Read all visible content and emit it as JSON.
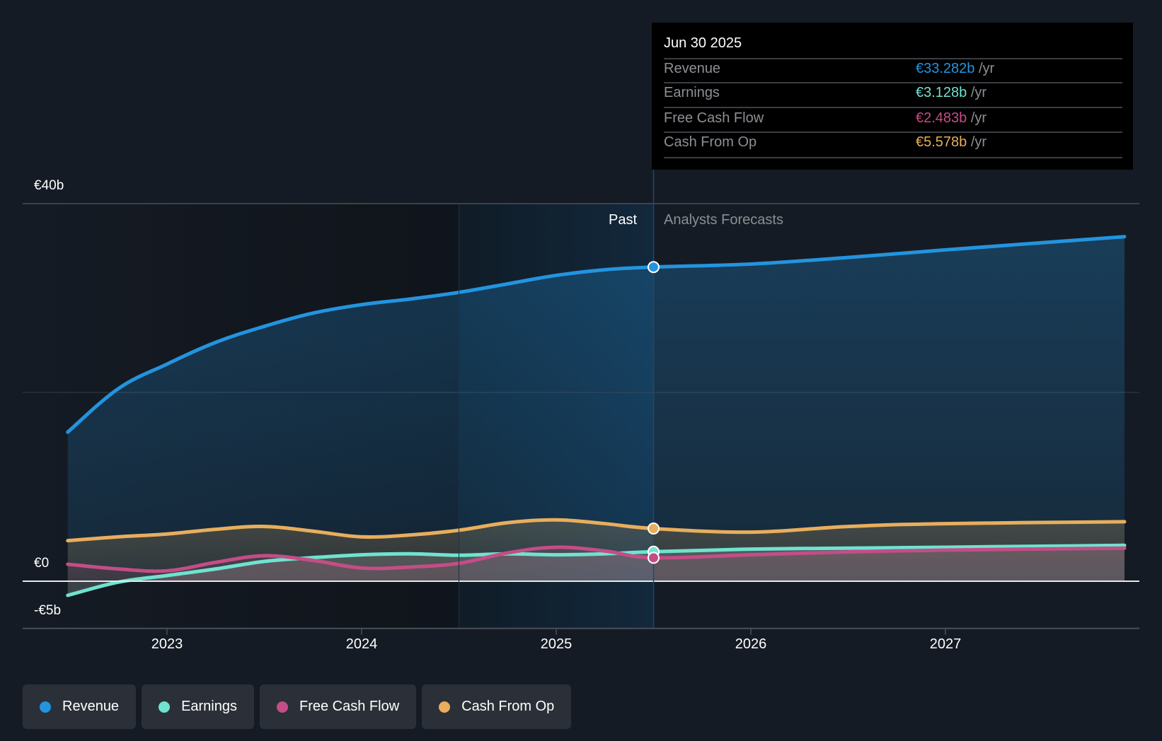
{
  "chart_data": {
    "type": "area",
    "title": "",
    "xlabel": "",
    "ylabel": "",
    "currency": "€",
    "ylim": [
      -5,
      40
    ],
    "xlim": [
      2022.49,
      2027.92
    ],
    "y_ticks": [
      {
        "value": 40,
        "label": "€40b"
      },
      {
        "value": 20,
        "label": ""
      },
      {
        "value": 0,
        "label": "€0"
      },
      {
        "value": -5,
        "label": "-€5b"
      }
    ],
    "x_ticks": [
      {
        "value": 2023,
        "label": "2023"
      },
      {
        "value": 2024,
        "label": "2024"
      },
      {
        "value": 2025,
        "label": "2025"
      },
      {
        "value": 2026,
        "label": "2026"
      },
      {
        "value": 2027,
        "label": "2027"
      }
    ],
    "grid": true,
    "legend_placement": "bottom-left",
    "past_region": {
      "from": 2024.5,
      "to": 2025.5,
      "label": "Past"
    },
    "forecast_label": "Analysts Forecasts",
    "marker_x": 2025.5,
    "series": [
      {
        "name": "Revenue",
        "color": "#2394df",
        "x": [
          2022.49,
          2022.75,
          2023.0,
          2023.25,
          2023.5,
          2023.75,
          2024.0,
          2024.25,
          2024.5,
          2024.75,
          2025.0,
          2025.25,
          2025.5,
          2026.0,
          2026.5,
          2027.0,
          2027.92
        ],
        "values": [
          15.8,
          20.4,
          23.0,
          25.3,
          27.0,
          28.4,
          29.3,
          29.9,
          30.6,
          31.5,
          32.4,
          33.0,
          33.28,
          33.6,
          34.3,
          35.1,
          36.5
        ]
      },
      {
        "name": "Earnings",
        "color": "#6fe3cf",
        "x": [
          2022.49,
          2022.75,
          2023.0,
          2023.25,
          2023.5,
          2023.75,
          2024.0,
          2024.25,
          2024.5,
          2024.75,
          2025.0,
          2025.25,
          2025.5,
          2026.0,
          2026.5,
          2027.0,
          2027.92
        ],
        "values": [
          -1.5,
          -0.1,
          0.6,
          1.3,
          2.1,
          2.5,
          2.8,
          2.9,
          2.75,
          2.9,
          2.8,
          2.9,
          3.128,
          3.4,
          3.5,
          3.6,
          3.8
        ]
      },
      {
        "name": "Free Cash Flow",
        "color": "#c44d87",
        "x": [
          2022.49,
          2022.75,
          2023.0,
          2023.25,
          2023.5,
          2023.75,
          2024.0,
          2024.25,
          2024.5,
          2024.75,
          2025.0,
          2025.25,
          2025.5,
          2026.0,
          2026.5,
          2027.0,
          2027.92
        ],
        "values": [
          1.8,
          1.3,
          1.1,
          2.0,
          2.7,
          2.2,
          1.4,
          1.5,
          1.9,
          3.0,
          3.6,
          3.2,
          2.483,
          2.8,
          3.1,
          3.3,
          3.5
        ]
      },
      {
        "name": "Cash From Op",
        "color": "#e8ae5c",
        "x": [
          2022.49,
          2022.75,
          2023.0,
          2023.25,
          2023.5,
          2023.75,
          2024.0,
          2024.25,
          2024.5,
          2024.75,
          2025.0,
          2025.25,
          2025.5,
          2026.0,
          2026.5,
          2027.0,
          2027.92
        ],
        "values": [
          4.3,
          4.7,
          5.0,
          5.5,
          5.8,
          5.3,
          4.7,
          4.9,
          5.4,
          6.2,
          6.5,
          6.1,
          5.578,
          5.2,
          5.8,
          6.1,
          6.3
        ]
      }
    ]
  },
  "tooltip": {
    "date": "Jun 30 2025",
    "rows": [
      {
        "label": "Revenue",
        "value": "€33.282b",
        "unit": "/yr",
        "color": "#2394df"
      },
      {
        "label": "Earnings",
        "value": "€3.128b",
        "unit": "/yr",
        "color": "#6fe3cf"
      },
      {
        "label": "Free Cash Flow",
        "value": "€2.483b",
        "unit": "/yr",
        "color": "#c44d87"
      },
      {
        "label": "Cash From Op",
        "value": "€5.578b",
        "unit": "/yr",
        "color": "#e8ae5c"
      }
    ]
  },
  "legend": [
    {
      "label": "Revenue",
      "color": "#2394df"
    },
    {
      "label": "Earnings",
      "color": "#6fe3cf"
    },
    {
      "label": "Free Cash Flow",
      "color": "#c44d87"
    },
    {
      "label": "Cash From Op",
      "color": "#e8ae5c"
    }
  ]
}
